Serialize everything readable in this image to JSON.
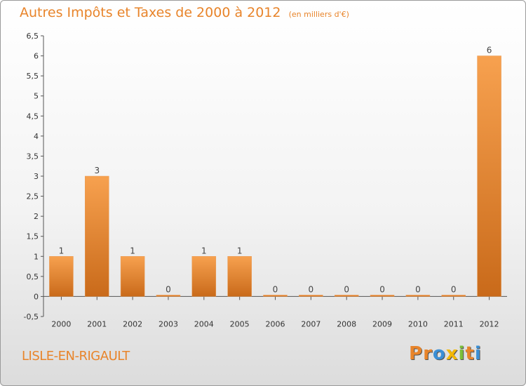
{
  "header": {
    "title": "Autres Impôts et Taxes de 2000 à 2012",
    "subtitle": "(en milliers d'€)"
  },
  "footer": {
    "town": "LISLE-EN-RIGAULT",
    "logo": "Proxiti"
  },
  "colors": {
    "accent": "#e8842a",
    "bar_top": "#f7a14f",
    "bar_bottom": "#c96a1a",
    "logo_letters": [
      "#e8842a",
      "#e8842a",
      "#3a8fd6",
      "#f2b705",
      "#7bbf3a",
      "#e8842a",
      "#3a8fd6"
    ]
  },
  "chart_data": {
    "type": "bar",
    "title": "Autres Impôts et Taxes de 2000 à 2012",
    "subtitle": "(en milliers d'€)",
    "categories": [
      "2000",
      "2001",
      "2002",
      "2003",
      "2004",
      "2005",
      "2006",
      "2007",
      "2008",
      "2009",
      "2010",
      "2011",
      "2012"
    ],
    "values": [
      1,
      3,
      1,
      0,
      1,
      1,
      0,
      0,
      0,
      0,
      0,
      0,
      6
    ],
    "data_labels": [
      "1",
      "3",
      "1",
      "0",
      "1",
      "1",
      "0",
      "0",
      "0",
      "0",
      "0",
      "0",
      "6"
    ],
    "ylim": [
      -0.5,
      6.5
    ],
    "yticks": [
      -0.5,
      0,
      0.5,
      1,
      1.5,
      2,
      2.5,
      3,
      3.5,
      4,
      4.5,
      5,
      5.5,
      6,
      6.5
    ],
    "ytick_labels": [
      "-0,5",
      "0",
      "0,5",
      "1",
      "1,5",
      "2",
      "2,5",
      "3",
      "3,5",
      "4",
      "4,5",
      "5",
      "5,5",
      "6",
      "6,5"
    ],
    "grid": false,
    "xlabel": "",
    "ylabel": ""
  }
}
